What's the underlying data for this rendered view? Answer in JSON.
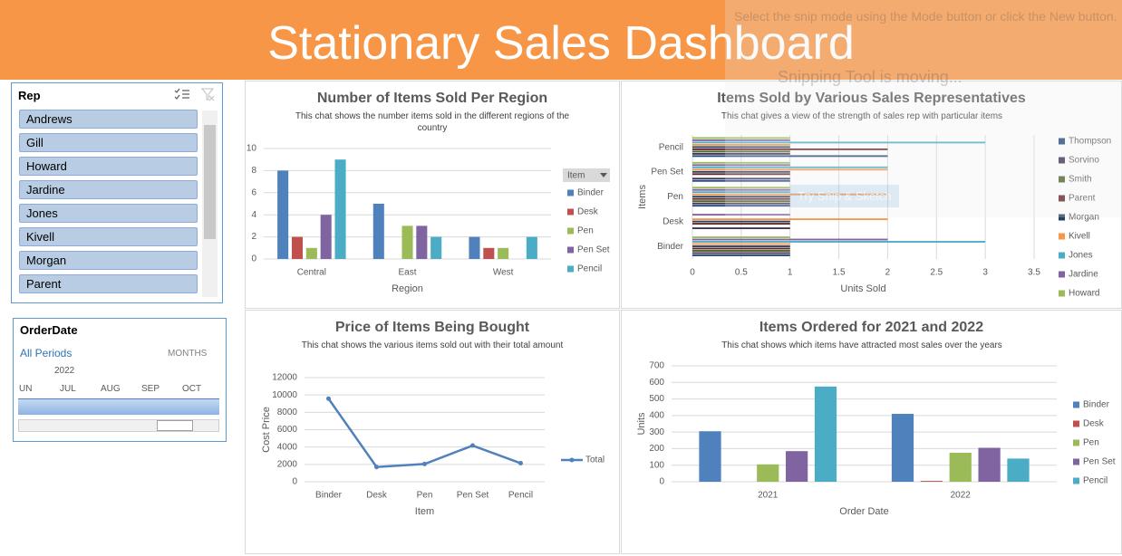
{
  "header": {
    "title": "Stationary Sales Dashboard"
  },
  "rep_slicer": {
    "title": "Rep",
    "items": [
      "Andrews",
      "Gill",
      "Howard",
      "Jardine",
      "Jones",
      "Kivell",
      "Morgan",
      "Parent"
    ]
  },
  "date_slicer": {
    "title": "OrderDate",
    "periods": "All Periods",
    "level": "MONTHS",
    "year": "2022",
    "months": [
      "UN",
      "JUL",
      "AUG",
      "SEP",
      "OCT"
    ]
  },
  "notification": {
    "message": "Select the snip mode using the Mode button or click the New button.",
    "title": "Snipping Tool is moving...",
    "button": "Try Snip & Sketch"
  },
  "chart_data": [
    {
      "type": "bar",
      "title": "Number of Items Sold Per Region",
      "subtitle": "This chat shows the number items sold in the different regions of the country",
      "categories": [
        "Central",
        "East",
        "West"
      ],
      "x_label": "Region",
      "legend": "right",
      "legend_title": "Item",
      "grid": true,
      "series": [
        {
          "name": "Binder",
          "color": "#4f81bd",
          "values": [
            8,
            5,
            2
          ]
        },
        {
          "name": "Desk",
          "color": "#c0504d",
          "values": [
            2,
            null,
            1
          ]
        },
        {
          "name": "Pen",
          "color": "#9bbb59",
          "values": [
            1,
            3,
            1
          ]
        },
        {
          "name": "Pen Set",
          "color": "#8064a2",
          "values": [
            4,
            3,
            null
          ]
        },
        {
          "name": "Pencil",
          "color": "#4bacc6",
          "values": [
            9,
            2,
            2
          ]
        }
      ],
      "ylim": [
        0,
        10
      ],
      "yticks": [
        0,
        2,
        4,
        6,
        8,
        10
      ]
    },
    {
      "type": "barh",
      "title": "Items Sold by Various Sales Representatives",
      "subtitle": "This chat gives a view of the strength of sales rep with particular items",
      "categories": [
        "Binder",
        "Desk",
        "Pen",
        "Pen Set",
        "Pencil"
      ],
      "x_label": "Units Sold",
      "y_label": "Items",
      "legend": "right",
      "grid": true,
      "series": [
        {
          "name": "Thompson",
          "color": "#1f497d",
          "values": [
            1,
            null,
            1,
            1,
            2
          ]
        },
        {
          "name": "Sorvino",
          "color": "#403151",
          "values": [
            1,
            1,
            1,
            1,
            1
          ]
        },
        {
          "name": "Smith",
          "color": "#4f6228",
          "values": [
            1,
            null,
            1,
            null,
            1
          ]
        },
        {
          "name": "Parent",
          "color": "#632523",
          "values": [
            1,
            1,
            1,
            1,
            2
          ]
        },
        {
          "name": "Morgan",
          "color": "#244062",
          "values": [
            1,
            1,
            1,
            1,
            1
          ]
        },
        {
          "name": "Kivell",
          "color": "#f79646",
          "values": [
            1,
            2,
            2,
            2,
            1
          ]
        },
        {
          "name": "Jones",
          "color": "#4bacc6",
          "values": [
            3,
            null,
            1,
            2,
            3
          ]
        },
        {
          "name": "Jardine",
          "color": "#8064a2",
          "values": [
            2,
            1,
            1,
            1,
            1
          ]
        },
        {
          "name": "Howard",
          "color": "#9bbb59",
          "values": [
            1,
            null,
            1,
            1,
            1
          ]
        }
      ],
      "xlim": [
        0,
        3.5
      ],
      "xticks": [
        0,
        0.5,
        1,
        1.5,
        2,
        2.5,
        3,
        3.5
      ]
    },
    {
      "type": "line",
      "title": "Price of Items Being Bought",
      "subtitle": "This chat shows the various items sold out with their total amount",
      "categories": [
        "Binder",
        "Desk",
        "Pen",
        "Pen Set",
        "Pencil"
      ],
      "x_label": "Item",
      "y_label": "Cost Price",
      "legend": "right",
      "grid": true,
      "series": [
        {
          "name": "Total",
          "color": "#4f81bd",
          "values": [
            9577,
            1700,
            2045,
            4170,
            2135
          ]
        }
      ],
      "ylim": [
        0,
        12000
      ],
      "yticks": [
        0,
        2000,
        4000,
        6000,
        8000,
        10000,
        12000
      ]
    },
    {
      "type": "bar",
      "title": "Items Ordered for 2021 and 2022",
      "subtitle": "This chat shows which items have attracted most sales over the years",
      "categories": [
        "2021",
        "2022"
      ],
      "x_label": "Order Date",
      "y_label": "Units",
      "legend": "right",
      "grid": true,
      "series": [
        {
          "name": "Binder",
          "color": "#4f81bd",
          "values": [
            305,
            410
          ]
        },
        {
          "name": "Desk",
          "color": "#c0504d",
          "values": [
            null,
            5
          ]
        },
        {
          "name": "Pen",
          "color": "#9bbb59",
          "values": [
            105,
            175
          ]
        },
        {
          "name": "Pen Set",
          "color": "#8064a2",
          "values": [
            185,
            205
          ]
        },
        {
          "name": "Pencil",
          "color": "#4bacc6",
          "values": [
            575,
            140
          ]
        }
      ],
      "ylim": [
        0,
        700
      ],
      "yticks": [
        0,
        100,
        200,
        300,
        400,
        500,
        600,
        700
      ]
    }
  ]
}
